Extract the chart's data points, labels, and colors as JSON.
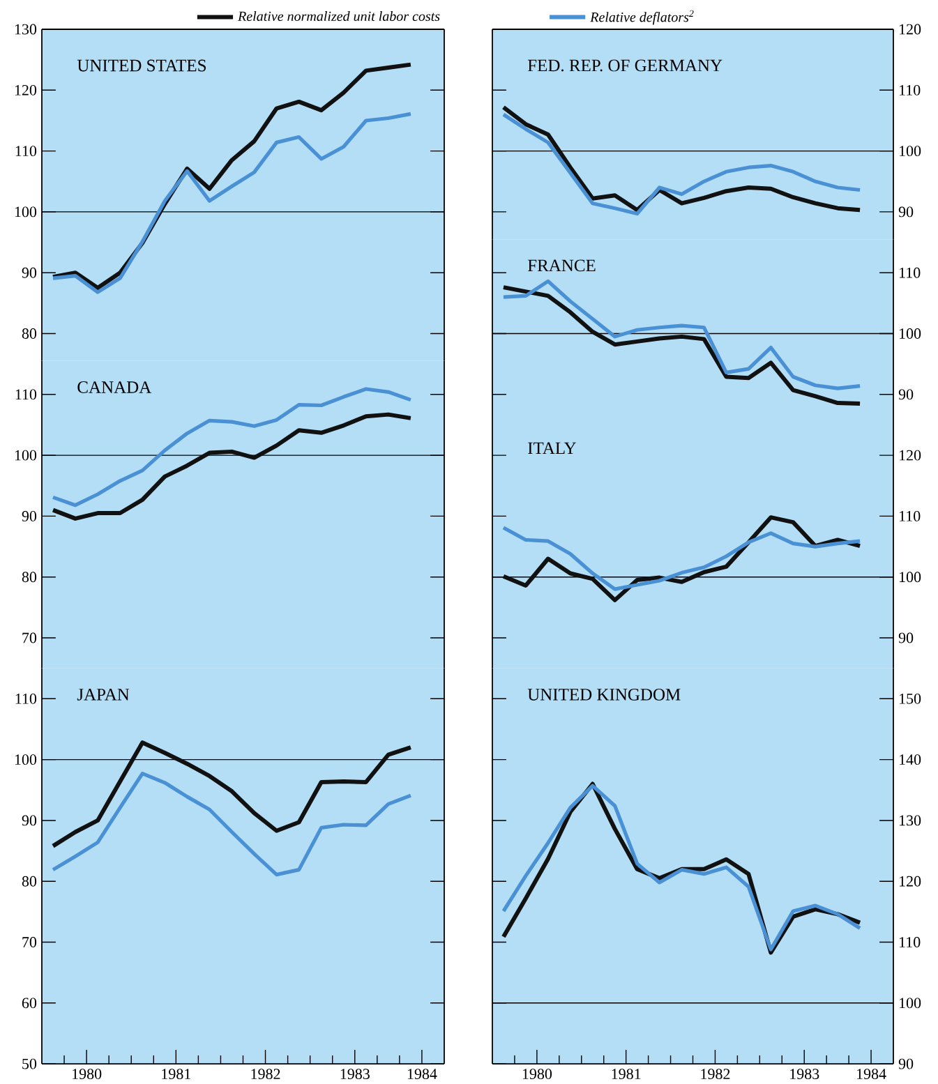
{
  "chart_data": [
    {
      "type": "line",
      "title": "UNITED STATES",
      "x": [
        1980.125,
        1980.375,
        1980.625,
        1980.875,
        1981.125,
        1981.375,
        1981.625,
        1981.875,
        1982.125,
        1982.375,
        1982.625,
        1982.875,
        1983.125,
        1983.375,
        1983.625,
        1983.875,
        1984.125
      ],
      "xlim": [
        1980,
        1984.5
      ],
      "ylim": [
        75.5,
        130
      ],
      "yticks": [
        80,
        90,
        100,
        110,
        120,
        130
      ],
      "tick_labels": "y",
      "legend": "top",
      "ref_lines": [
        {
          "axis": "y",
          "value": 100
        }
      ],
      "series": [
        {
          "name": "*Relative normalized unit labor costs*",
          "color": "#111111",
          "values": [
            89.3,
            90.0,
            87.5,
            90.0,
            94.9,
            101.3,
            107.1,
            103.8,
            108.5,
            111.6,
            117.0,
            118.1,
            116.7,
            119.6,
            123.2,
            123.7,
            124.2
          ]
        },
        {
          "name": "*Relative deflators$^{2}$*",
          "color": "#4a90d4",
          "values": [
            89.1,
            89.5,
            86.8,
            89.1,
            95.1,
            101.8,
            106.7,
            101.8,
            104.2,
            106.5,
            111.4,
            112.3,
            108.7,
            110.7,
            115.0,
            115.4,
            116.1
          ]
        }
      ]
    },
    {
      "type": "line",
      "title": "CANADA",
      "x": [
        1980.125,
        1980.375,
        1980.625,
        1980.875,
        1981.125,
        1981.375,
        1981.625,
        1981.875,
        1982.125,
        1982.375,
        1982.625,
        1982.875,
        1983.125,
        1983.375,
        1983.625,
        1983.875,
        1984.125
      ],
      "xlim": [
        1980,
        1984.5
      ],
      "ylim": [
        65,
        115.5
      ],
      "yticks": [
        70,
        80,
        90,
        100,
        110
      ],
      "tick_labels": "y",
      "ref_lines": [
        {
          "axis": "y",
          "value": 100
        }
      ],
      "series": [
        {
          "color": "#111111",
          "values": [
            91.0,
            89.6,
            90.5,
            90.5,
            92.7,
            96.5,
            98.3,
            100.4,
            100.6,
            99.6,
            101.6,
            104.1,
            103.7,
            104.9,
            106.4,
            106.7,
            106.1
          ]
        },
        {
          "color": "#4a90d4",
          "values": [
            93.1,
            91.8,
            93.6,
            95.8,
            97.5,
            100.8,
            103.6,
            105.7,
            105.5,
            104.8,
            105.8,
            108.3,
            108.2,
            109.6,
            110.9,
            110.4,
            109.1
          ]
        }
      ]
    },
    {
      "type": "line",
      "title": "JAPAN",
      "x": [
        1980.125,
        1980.375,
        1980.625,
        1980.875,
        1981.125,
        1981.375,
        1981.625,
        1981.875,
        1982.125,
        1982.375,
        1982.625,
        1982.875,
        1983.125,
        1983.375,
        1983.625,
        1983.875,
        1984.125
      ],
      "xlim": [
        1980,
        1984.5
      ],
      "ylim": [
        50,
        115
      ],
      "yticks": [
        50,
        60,
        70,
        80,
        90,
        100,
        110
      ],
      "xticks": [
        {
          "value": 1980.5,
          "label": "1980"
        },
        {
          "value": 1981.5,
          "label": "1981"
        },
        {
          "value": 1982.5,
          "label": "1982"
        },
        {
          "value": 1983.5,
          "label": "1983"
        },
        {
          "value": 1984.25,
          "label": "1984"
        },
        {
          "value": 1980.25,
          "label": null
        },
        {
          "value": 1980.75,
          "label": null
        },
        {
          "value": 1981,
          "label": null
        },
        {
          "value": 1981.25,
          "label": null
        },
        {
          "value": 1981.75,
          "label": null
        },
        {
          "value": 1982,
          "label": null
        },
        {
          "value": 1982.25,
          "label": null
        },
        {
          "value": 1982.75,
          "label": null
        },
        {
          "value": 1983,
          "label": null
        },
        {
          "value": 1983.25,
          "label": null
        },
        {
          "value": 1983.75,
          "label": null
        },
        {
          "value": 1984,
          "label": null
        }
      ],
      "ref_lines": [
        {
          "axis": "y",
          "value": 100
        }
      ],
      "series": [
        {
          "color": "#111111",
          "values": [
            85.8,
            88.1,
            90.0,
            96.4,
            102.8,
            101.1,
            99.3,
            97.3,
            94.8,
            91.2,
            88.3,
            89.7,
            96.3,
            96.4,
            96.3,
            100.8,
            102.0
          ]
        },
        {
          "color": "#4a90d4",
          "values": [
            81.9,
            84.1,
            86.4,
            92.1,
            97.7,
            96.2,
            93.9,
            91.8,
            88.1,
            84.5,
            81.1,
            81.9,
            88.8,
            89.3,
            89.2,
            92.7,
            94.1
          ]
        }
      ]
    },
    {
      "type": "line",
      "title": "FED. REP. OF GERMANY",
      "x": [
        1980.125,
        1980.375,
        1980.625,
        1980.875,
        1981.125,
        1981.375,
        1981.625,
        1981.875,
        1982.125,
        1982.375,
        1982.625,
        1982.875,
        1983.125,
        1983.375,
        1983.625,
        1983.875,
        1984.125
      ],
      "xlim": [
        1980,
        1984.5
      ],
      "ylim": [
        85.5,
        120
      ],
      "yticks": [
        90,
        100,
        110,
        120
      ],
      "tick_labels": "y",
      "ref_lines": [
        {
          "axis": "y",
          "value": 100
        }
      ],
      "series": [
        {
          "color": "#111111",
          "values": [
            107.2,
            104.4,
            102.7,
            97.3,
            92.2,
            92.7,
            90.3,
            93.6,
            91.4,
            92.3,
            93.4,
            94.0,
            93.8,
            92.4,
            91.4,
            90.6,
            90.3
          ]
        },
        {
          "color": "#4a90d4",
          "values": [
            106.0,
            103.6,
            101.4,
            96.4,
            91.4,
            90.6,
            89.7,
            94.0,
            92.9,
            95.0,
            96.6,
            97.3,
            97.6,
            96.6,
            95.0,
            94.0,
            93.6
          ]
        }
      ]
    },
    {
      "type": "line",
      "title": "FRANCE",
      "x": [
        1980.125,
        1980.375,
        1980.625,
        1980.875,
        1981.125,
        1981.375,
        1981.625,
        1981.875,
        1982.125,
        1982.375,
        1982.625,
        1982.875,
        1983.125,
        1983.375,
        1983.625,
        1983.875,
        1984.125
      ],
      "xlim": [
        1980,
        1984.5
      ],
      "ylim": [
        85.5,
        115.5
      ],
      "yticks": [
        90,
        100,
        110
      ],
      "tick_labels": "y",
      "ref_lines": [
        {
          "axis": "y",
          "value": 100
        }
      ],
      "series": [
        {
          "color": "#111111",
          "values": [
            107.6,
            106.9,
            106.2,
            103.5,
            100.3,
            98.2,
            98.7,
            99.2,
            99.5,
            99.1,
            92.9,
            92.7,
            95.2,
            90.7,
            89.7,
            88.6,
            88.5
          ]
        },
        {
          "color": "#4a90d4",
          "values": [
            106.0,
            106.2,
            108.6,
            105.3,
            102.4,
            99.5,
            100.6,
            101.0,
            101.3,
            101.0,
            93.6,
            94.2,
            97.7,
            92.9,
            91.5,
            91.0,
            91.4
          ]
        }
      ]
    },
    {
      "type": "line",
      "title": "ITALY",
      "x": [
        1980.125,
        1980.375,
        1980.625,
        1980.875,
        1981.125,
        1981.375,
        1981.625,
        1981.875,
        1982.125,
        1982.375,
        1982.625,
        1982.875,
        1983.125,
        1983.375,
        1983.625,
        1983.875,
        1984.125
      ],
      "xlim": [
        1980,
        1984.5
      ],
      "ylim": [
        85,
        125.5
      ],
      "yticks": [
        90,
        100,
        110,
        120
      ],
      "tick_labels": "y",
      "ref_lines": [
        {
          "axis": "y",
          "value": 100
        }
      ],
      "series": [
        {
          "color": "#111111",
          "values": [
            100.1,
            98.6,
            103.0,
            100.6,
            99.7,
            96.2,
            99.5,
            99.9,
            99.2,
            100.8,
            101.7,
            105.7,
            109.8,
            109.0,
            105.1,
            106.1,
            105.1
          ]
        },
        {
          "color": "#4a90d4",
          "values": [
            108.1,
            106.1,
            105.9,
            103.8,
            100.6,
            98.0,
            98.7,
            99.4,
            100.7,
            101.6,
            103.4,
            105.7,
            107.2,
            105.5,
            105.0,
            105.5,
            105.9
          ]
        }
      ]
    },
    {
      "type": "line",
      "title": "UNITED KINGDOM",
      "x": [
        1980.125,
        1980.375,
        1980.625,
        1980.875,
        1981.125,
        1981.375,
        1981.625,
        1981.875,
        1982.125,
        1982.375,
        1982.625,
        1982.875,
        1983.125,
        1983.375,
        1983.625,
        1983.875,
        1984.125
      ],
      "xlim": [
        1980,
        1984.5
      ],
      "ylim": [
        90,
        155
      ],
      "yticks": [
        90,
        100,
        110,
        120,
        130,
        140,
        150
      ],
      "xticks": [
        {
          "value": 1980.5,
          "label": "1980"
        },
        {
          "value": 1981.5,
          "label": "1981"
        },
        {
          "value": 1982.5,
          "label": "1982"
        },
        {
          "value": 1983.5,
          "label": "1983"
        },
        {
          "value": 1984.25,
          "label": "1984"
        },
        {
          "value": 1980.25,
          "label": null
        },
        {
          "value": 1980.75,
          "label": null
        },
        {
          "value": 1981,
          "label": null
        },
        {
          "value": 1981.25,
          "label": null
        },
        {
          "value": 1981.75,
          "label": null
        },
        {
          "value": 1982,
          "label": null
        },
        {
          "value": 1982.25,
          "label": null
        },
        {
          "value": 1982.75,
          "label": null
        },
        {
          "value": 1983,
          "label": null
        },
        {
          "value": 1983.25,
          "label": null
        },
        {
          "value": 1983.75,
          "label": null
        },
        {
          "value": 1984,
          "label": null
        }
      ],
      "ref_lines": [
        {
          "axis": "y",
          "value": 100
        }
      ],
      "series": [
        {
          "color": "#111111",
          "values": [
            110.9,
            117.2,
            123.7,
            131.4,
            136.0,
            128.6,
            122.0,
            120.5,
            122.0,
            122.0,
            123.6,
            121.2,
            108.3,
            114.2,
            115.4,
            114.6,
            113.2
          ]
        },
        {
          "color": "#4a90d4",
          "values": [
            115.1,
            120.9,
            126.3,
            132.1,
            135.7,
            132.4,
            122.9,
            119.8,
            121.9,
            121.2,
            122.3,
            119.1,
            108.8,
            115.1,
            116.0,
            114.6,
            112.3
          ]
        }
      ]
    }
  ]
}
